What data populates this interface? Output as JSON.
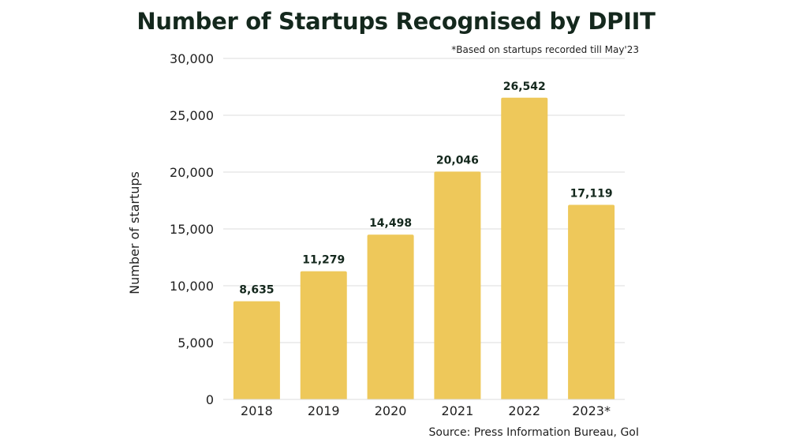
{
  "header": {
    "title": "Number of Startups Recognised by DPIIT",
    "note": "*Based on startups recorded till May'23"
  },
  "footer": {
    "source": "Source: Press Information Bureau, GoI"
  },
  "colors": {
    "bar": "#eec85a",
    "grid": "#dcdcdc",
    "title": "#14281d"
  },
  "chart_data": {
    "type": "bar",
    "title": "Number of Startups Recognised by DPIIT",
    "xlabel": "",
    "ylabel": "Number of startups",
    "categories": [
      "2018",
      "2019",
      "2020",
      "2021",
      "2022",
      "2023*"
    ],
    "values": [
      8635,
      11279,
      14498,
      20046,
      26542,
      17119
    ],
    "value_labels": [
      "8,635",
      "11,279",
      "14,498",
      "20,046",
      "26,542",
      "17,119"
    ],
    "yticks": [
      0,
      5000,
      10000,
      15000,
      20000,
      25000,
      30000
    ],
    "ytick_labels": [
      "0",
      "5,000",
      "10,000",
      "15,000",
      "20,000",
      "25,000",
      "30,000"
    ],
    "ylim": [
      0,
      30000
    ],
    "grid": true,
    "legend": "none"
  }
}
